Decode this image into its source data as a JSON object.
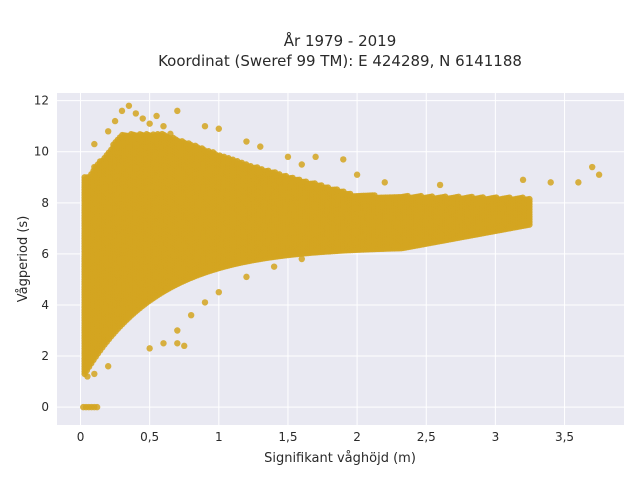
{
  "chart_data": {
    "type": "scatter",
    "title_line1": "År 1979 - 2019",
    "title_line2": "Koordinat (Sweref 99 TM): E 424289, N 6141188",
    "xlabel": "Signifikant våghöjd (m)",
    "ylabel": "Vågperiod (s)",
    "xlim": [
      -0.17,
      3.93
    ],
    "ylim": [
      -0.7,
      12.3
    ],
    "x_ticks": [
      0,
      0.5,
      1,
      1.5,
      2,
      2.5,
      3,
      3.5
    ],
    "x_tick_labels": [
      "0",
      "0,5",
      "1",
      "1,5",
      "2",
      "2,5",
      "3",
      "3,5"
    ],
    "y_ticks": [
      0,
      2,
      4,
      6,
      8,
      10,
      12
    ],
    "y_tick_labels": [
      "0",
      "2",
      "4",
      "6",
      "8",
      "10",
      "12"
    ],
    "grid": true,
    "colors": {
      "marker": "#d4a520",
      "plot_bg": "#e9e9f2",
      "grid": "#ffffff"
    },
    "series": [
      {
        "points": [
          [
            0.02,
            0
          ],
          [
            0.04,
            0
          ],
          [
            0.06,
            0
          ],
          [
            0.08,
            0
          ],
          [
            0.1,
            0
          ],
          [
            0.12,
            0
          ],
          [
            0.05,
            1.2
          ],
          [
            0.05,
            2.0
          ],
          [
            0.05,
            3.0
          ],
          [
            0.05,
            4.0
          ],
          [
            0.05,
            5.0
          ],
          [
            0.05,
            6.0
          ],
          [
            0.05,
            7.0
          ],
          [
            0.05,
            8.0
          ],
          [
            0.05,
            9.0
          ],
          [
            0.1,
            1.3
          ],
          [
            0.1,
            3.5
          ],
          [
            0.1,
            6.5
          ],
          [
            0.1,
            9.4
          ],
          [
            0.1,
            10.3
          ],
          [
            0.2,
            1.6
          ],
          [
            0.2,
            5.5
          ],
          [
            0.2,
            10.8
          ],
          [
            0.25,
            11.2
          ],
          [
            0.3,
            11.6
          ],
          [
            0.35,
            11.8
          ],
          [
            0.4,
            11.5
          ],
          [
            0.45,
            11.3
          ],
          [
            0.5,
            11.1
          ],
          [
            0.55,
            11.4
          ],
          [
            0.6,
            11.0
          ],
          [
            0.7,
            11.6
          ],
          [
            0.65,
            10.7
          ],
          [
            0.5,
            2.3
          ],
          [
            0.6,
            2.5
          ],
          [
            0.7,
            3.0
          ],
          [
            0.8,
            3.6
          ],
          [
            0.9,
            4.1
          ],
          [
            1.0,
            4.5
          ],
          [
            1.2,
            5.1
          ],
          [
            1.4,
            5.5
          ],
          [
            1.6,
            5.8
          ],
          [
            1.8,
            6.1
          ],
          [
            2.0,
            6.4
          ],
          [
            2.2,
            6.7
          ],
          [
            2.4,
            6.9
          ],
          [
            2.6,
            7.1
          ],
          [
            2.8,
            7.4
          ],
          [
            3.0,
            7.7
          ],
          [
            3.2,
            7.9
          ],
          [
            0.9,
            11.0
          ],
          [
            1.0,
            10.9
          ],
          [
            1.2,
            10.4
          ],
          [
            1.3,
            10.2
          ],
          [
            1.5,
            9.8
          ],
          [
            1.6,
            9.5
          ],
          [
            1.7,
            9.8
          ],
          [
            1.9,
            9.7
          ],
          [
            2.0,
            9.1
          ],
          [
            2.2,
            8.8
          ],
          [
            2.6,
            8.7
          ],
          [
            3.2,
            8.9
          ],
          [
            3.4,
            8.8
          ],
          [
            3.6,
            8.8
          ],
          [
            3.7,
            9.4
          ],
          [
            3.75,
            9.1
          ],
          [
            0.75,
            2.4
          ],
          [
            0.7,
            2.5
          ]
        ]
      }
    ]
  }
}
